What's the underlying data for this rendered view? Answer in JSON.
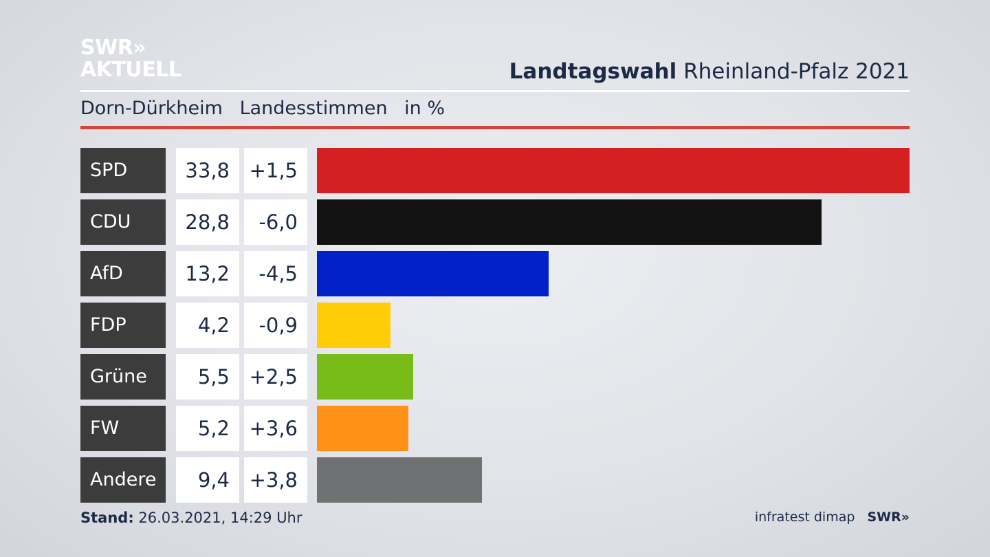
{
  "header": {
    "logo_line1": "SWR»",
    "logo_line2": "AKTUELL",
    "title_bold": "Landtagswahl",
    "title_rest": "Rheinland-Pfalz 2021"
  },
  "subtitle": {
    "region": "Dorn-Dürkheim",
    "measure": "Landesstimmen",
    "unit": "in %"
  },
  "footer": {
    "stand_label": "Stand:",
    "stand_value": "26.03.2021, 14:29 Uhr",
    "source": "infratest dimap",
    "brand": "SWR»"
  },
  "colors": {
    "accent_rule": "#d1483a"
  },
  "chart_data": {
    "type": "bar",
    "orientation": "horizontal",
    "categories": [
      "SPD",
      "CDU",
      "AfD",
      "FDP",
      "Grüne",
      "FW",
      "Andere"
    ],
    "values": [
      33.8,
      28.8,
      13.2,
      4.2,
      5.5,
      5.2,
      9.4
    ],
    "value_labels": [
      "33,8",
      "28,8",
      "13,2",
      "4,2",
      "5,5",
      "5,2",
      "9,4"
    ],
    "changes": [
      1.5,
      -6.0,
      -4.5,
      -0.9,
      2.5,
      3.6,
      3.8
    ],
    "change_labels": [
      "+1,5",
      "-6,0",
      "-4,5",
      "-0,9",
      "+2,5",
      "+3,6",
      "+3,8"
    ],
    "colors": [
      "#d42020",
      "#121212",
      "#0020c8",
      "#ffcc08",
      "#78bc1a",
      "#ff9018",
      "#707172"
    ],
    "xlim": [
      0,
      33.8
    ]
  }
}
